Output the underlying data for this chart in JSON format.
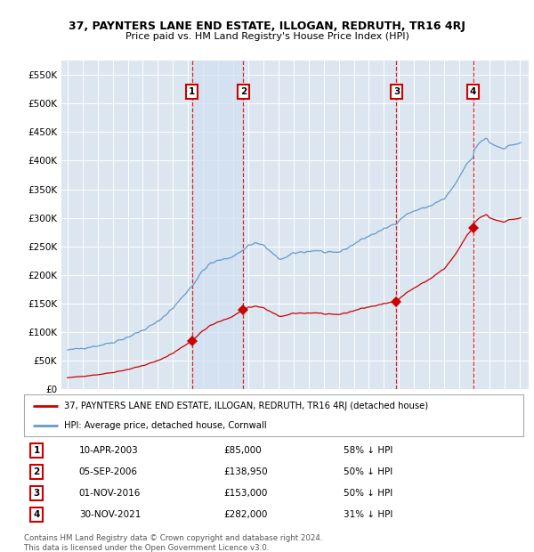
{
  "title": "37, PAYNTERS LANE END ESTATE, ILLOGAN, REDRUTH, TR16 4RJ",
  "subtitle": "Price paid vs. HM Land Registry's House Price Index (HPI)",
  "legend_entries": [
    "37, PAYNTERS LANE END ESTATE, ILLOGAN, REDRUTH, TR16 4RJ (detached house)",
    "HPI: Average price, detached house, Cornwall"
  ],
  "transactions": [
    {
      "num": 1,
      "date": "10-APR-2003",
      "year": 2003.27,
      "price": 85000,
      "pct": "58% ↓ HPI"
    },
    {
      "num": 2,
      "date": "05-SEP-2006",
      "year": 2006.67,
      "price": 138950,
      "pct": "50% ↓ HPI"
    },
    {
      "num": 3,
      "date": "01-NOV-2016",
      "year": 2016.83,
      "price": 153000,
      "pct": "50% ↓ HPI"
    },
    {
      "num": 4,
      "date": "30-NOV-2021",
      "year": 2021.92,
      "price": 282000,
      "pct": "31% ↓ HPI"
    }
  ],
  "hpi_color": "#6699cc",
  "price_color": "#cc0000",
  "marker_color": "#cc0000",
  "vline_color": "#dd2222",
  "shade_color": "#d0e0f0",
  "footer": "Contains HM Land Registry data © Crown copyright and database right 2024.\nThis data is licensed under the Open Government Licence v3.0.",
  "ylim": [
    0,
    575000
  ],
  "yticks": [
    0,
    50000,
    100000,
    150000,
    200000,
    250000,
    300000,
    350000,
    400000,
    450000,
    500000,
    550000
  ],
  "background_color": "#dce6f0",
  "xlim_start": 1994.6,
  "xlim_end": 2025.6
}
